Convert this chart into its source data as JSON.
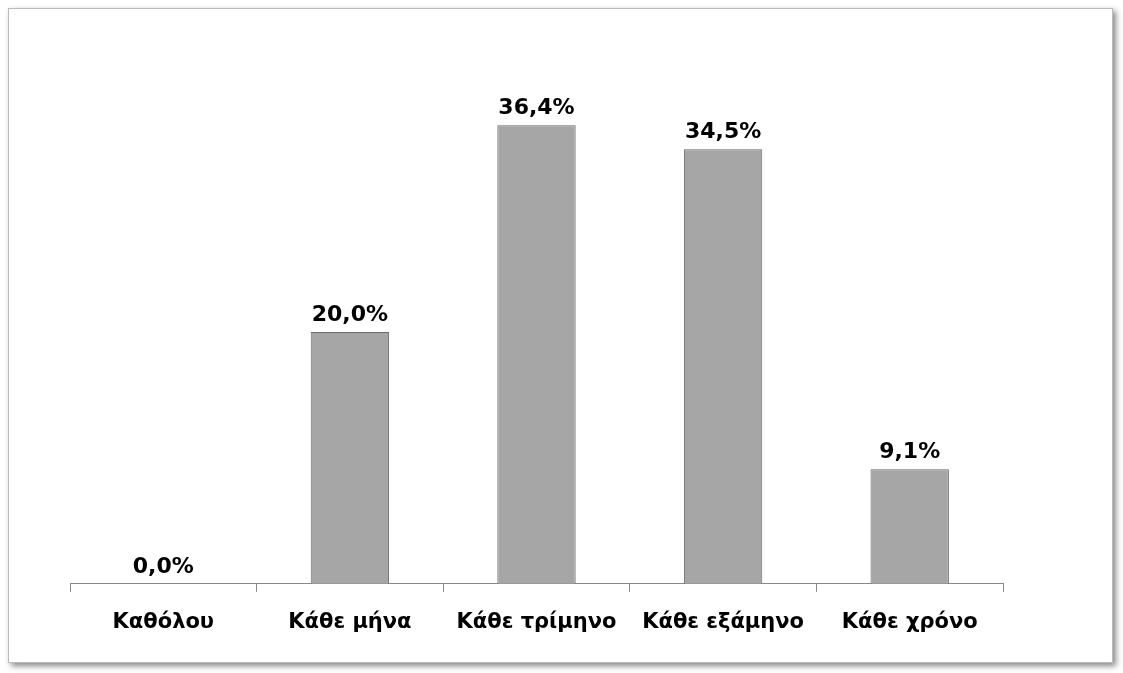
{
  "chart_data": {
    "type": "bar",
    "categories": [
      "Καθόλου",
      "Κάθε μήνα",
      "Κάθε τρίμηνο",
      "Κάθε εξάμηνο",
      "Κάθε χρόνο"
    ],
    "values": [
      0,
      20.0,
      36.4,
      34.5,
      9.1
    ],
    "value_labels": [
      "0,0%",
      "20,0%",
      "36,4%",
      "34,5%",
      "9,1%"
    ],
    "color": "#a6a6a6",
    "grid": false,
    "legend": false,
    "tick_labels": "x"
  }
}
